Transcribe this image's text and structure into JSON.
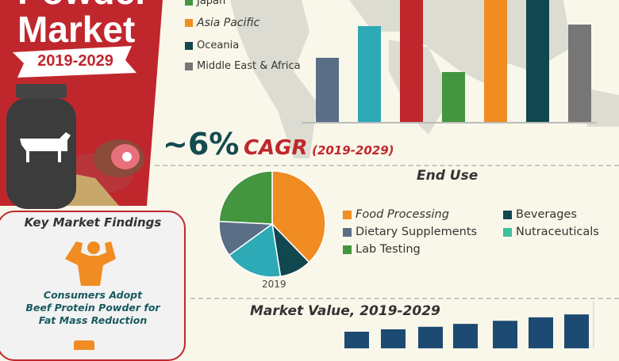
{
  "header": {
    "title_line1": "Powder",
    "title_line2": "Market",
    "period": "2019-2029"
  },
  "cagr": {
    "value": "~6%",
    "label": "CAGR",
    "period": "(2019-2029)"
  },
  "colors": {
    "red": "#c0272d",
    "cream": "#f9f7e9",
    "teal_text": "#185a5f"
  },
  "chart_data": [
    {
      "type": "bar",
      "title": "",
      "legend_visible": [
        "Japan",
        "Asia Pacific",
        "Oceania",
        "Middle East & Africa"
      ],
      "legend_colors": [
        "#43953f",
        "#f08c22",
        "#11474f",
        "#767676"
      ],
      "bar_colors": [
        "#5a6e86",
        "#2ea9b6",
        "#c0272d",
        "#43953f",
        "#f08c22",
        "#11474f",
        "#767676"
      ],
      "values": [
        82,
        122,
        170,
        64,
        170,
        170,
        124
      ],
      "note_clipped_top": [
        false,
        false,
        true,
        false,
        true,
        true,
        false
      ]
    },
    {
      "type": "pie",
      "title": "End Use",
      "caption": "2019",
      "slices": [
        {
          "name": "Food Processing",
          "value": 37.8,
          "color": "#f08c22"
        },
        {
          "name": "Beverages",
          "value": 9.7,
          "color": "#11474f"
        },
        {
          "name": "Nutraceuticals",
          "value": 17.5,
          "color": "#2ea9b6"
        },
        {
          "name": "Dietary Supplements",
          "value": 10.8,
          "color": "#5a6e86"
        },
        {
          "name": "Lab Testing",
          "value": 24.2,
          "color": "#43953f"
        }
      ],
      "legend_colors": {
        "Nutraceuticals": "#3fbf9f"
      }
    },
    {
      "type": "bar",
      "title": "Market Value, 2019-2029",
      "color": "#1d4a72",
      "values": [
        1.0,
        1.13,
        1.27,
        1.43,
        1.6,
        1.79,
        1.95
      ]
    }
  ],
  "findings": {
    "title": "Key Market Findings",
    "items": [
      {
        "icon": "muscle-man-icon",
        "text_lines": [
          "Consumers Adopt",
          "Beef Protein Powder for",
          "Fat Mass Reduction"
        ]
      }
    ]
  }
}
